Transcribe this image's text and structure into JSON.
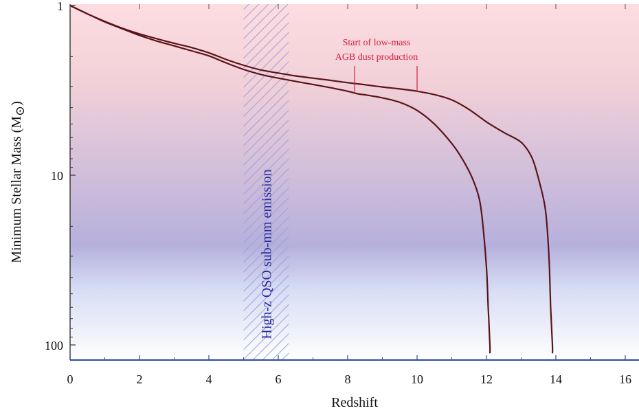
{
  "chart_data": {
    "type": "line",
    "title": "",
    "xlabel": "Redshift",
    "ylabel": "Minimum Stellar Mass (M",
    "ylabel_symbol": "⊙",
    "xlim": [
      0,
      16.8
    ],
    "ylim": [
      1,
      110
    ],
    "yscale": "log",
    "y_inverted": true,
    "grid": false,
    "x_ticks": [
      0,
      2,
      4,
      6,
      8,
      10,
      12,
      14,
      16
    ],
    "y_ticks": [
      1,
      10,
      100
    ],
    "background_gradient": {
      "top": "#fddde1",
      "middle": "#b6b0dc",
      "bottom": "#ffffff"
    },
    "shaded_band": {
      "x": [
        5.0,
        6.3
      ],
      "label": "High-z QSO sub-mm emission",
      "color": "#9aa0dc"
    },
    "annotation": {
      "lines": [
        "Start of low-mass",
        "AGB dust production"
      ],
      "color": "#d81b3c",
      "pointers": [
        {
          "x": 8.2,
          "y": 2.8
        },
        {
          "x": 10.0,
          "y": 2.8
        }
      ]
    },
    "series": [
      {
        "x": [
          0,
          0.5,
          1,
          1.5,
          2,
          2.5,
          3,
          3.5,
          4,
          4.5,
          5,
          5.5,
          6,
          6.5,
          7,
          7.5,
          8,
          8.3,
          8.5,
          9,
          9.5,
          10,
          10.5,
          11,
          11.3,
          11.6,
          11.8,
          11.9,
          12.0,
          12.05,
          12.1,
          12.1
        ],
        "y": [
          1.0,
          1.12,
          1.25,
          1.37,
          1.5,
          1.62,
          1.73,
          1.85,
          1.98,
          2.18,
          2.38,
          2.55,
          2.68,
          2.8,
          2.92,
          3.05,
          3.2,
          3.32,
          3.36,
          3.5,
          3.72,
          4.15,
          5.0,
          6.5,
          8.0,
          10.5,
          14,
          20,
          35,
          60,
          100,
          112
        ],
        "color": "#5a1418"
      },
      {
        "x": [
          0,
          0.5,
          1,
          1.5,
          2,
          2.5,
          3,
          3.5,
          4,
          4.5,
          5,
          5.5,
          6,
          6.5,
          7,
          7.5,
          8,
          8.5,
          9,
          9.5,
          10,
          10.5,
          11,
          11.5,
          12,
          12.5,
          13,
          13.3,
          13.5,
          13.7,
          13.8,
          13.85,
          13.9,
          13.9
        ],
        "y": [
          1.0,
          1.12,
          1.24,
          1.36,
          1.47,
          1.57,
          1.67,
          1.77,
          1.9,
          2.08,
          2.25,
          2.4,
          2.5,
          2.6,
          2.68,
          2.76,
          2.85,
          2.93,
          3.02,
          3.1,
          3.2,
          3.35,
          3.6,
          4.1,
          4.85,
          5.6,
          6.4,
          7.8,
          10.5,
          16,
          30,
          60,
          100,
          112
        ],
        "color": "#5a1418"
      }
    ]
  }
}
